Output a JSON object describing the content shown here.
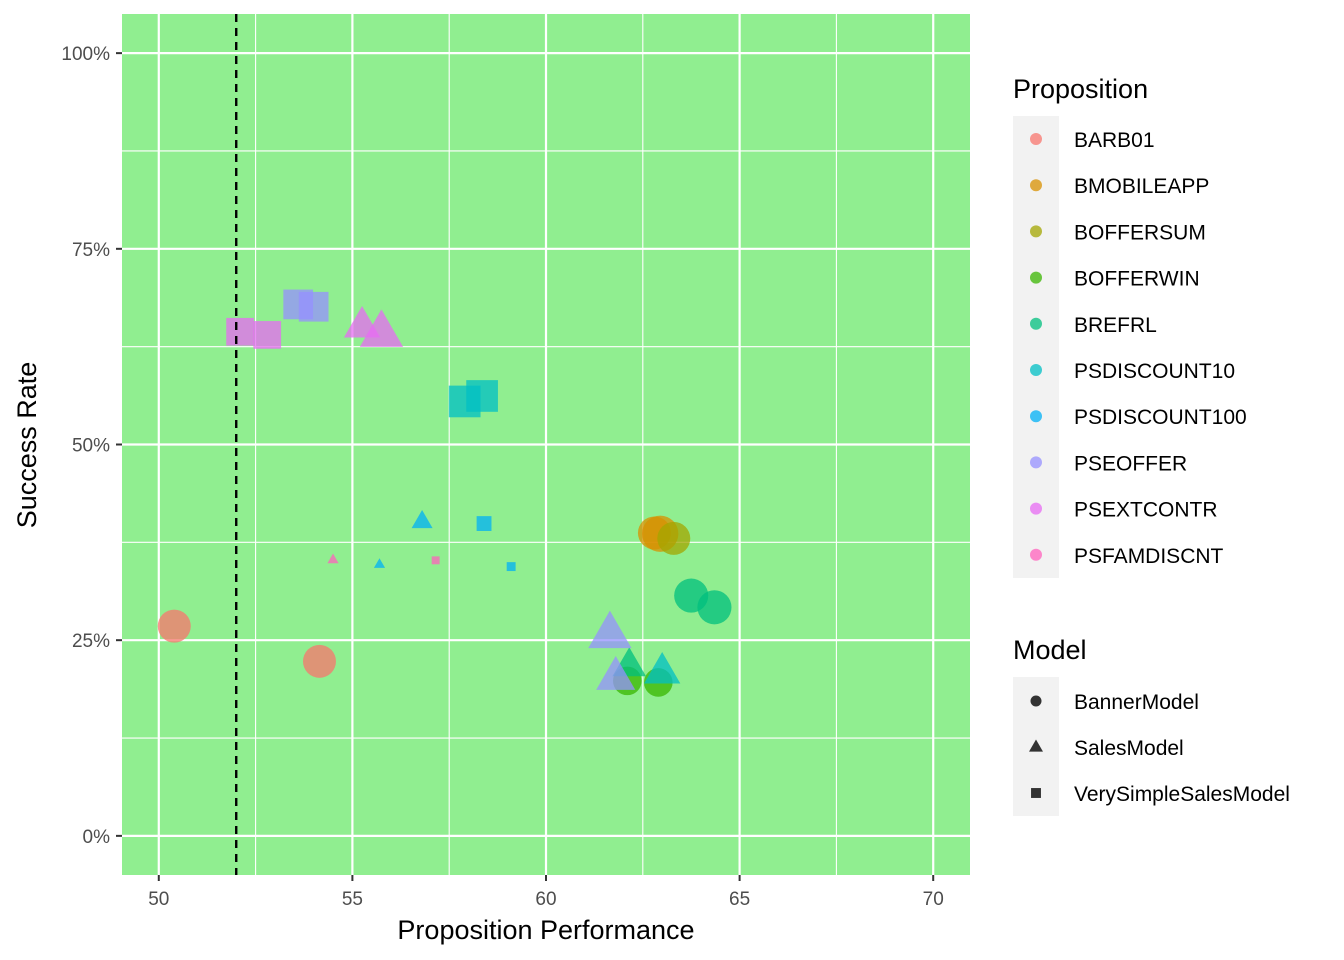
{
  "colors": {
    "panel_background": "#90EE90",
    "grid_major": "#ffffff",
    "legend_key_background": "#f2f2f2",
    "reference_line": "#000000"
  },
  "legend_proposition": {
    "title": "Proposition",
    "items": [
      {
        "label": "BARB01",
        "color": "#F8766D"
      },
      {
        "label": "BMOBILEAPP",
        "color": "#D89000"
      },
      {
        "label": "BOFFERSUM",
        "color": "#A3A500"
      },
      {
        "label": "BOFFERWIN",
        "color": "#39B600"
      },
      {
        "label": "BREFRL",
        "color": "#00BF7D"
      },
      {
        "label": "PSDISCOUNT10",
        "color": "#00BFC4"
      },
      {
        "label": "PSDISCOUNT100",
        "color": "#00B0F6"
      },
      {
        "label": "PSEOFFER",
        "color": "#9590FF"
      },
      {
        "label": "PSEXTCONTR",
        "color": "#E76BF3"
      },
      {
        "label": "PSFAMDISCNT",
        "color": "#FF62BC"
      }
    ]
  },
  "legend_model": {
    "title": "Model",
    "items": [
      {
        "label": "BannerModel",
        "shape": "circle"
      },
      {
        "label": "SalesModel",
        "shape": "triangle"
      },
      {
        "label": "VerySimpleSalesModel",
        "shape": "square"
      }
    ]
  },
  "chart_data": {
    "type": "scatter",
    "title": "",
    "xlabel": "Proposition Performance",
    "ylabel": "Success Rate",
    "xlim": [
      49.05,
      70.95
    ],
    "ylim": [
      -0.05,
      1.05
    ],
    "x_ticks": [
      50,
      55,
      60,
      65,
      70
    ],
    "x_tick_labels": [
      "50",
      "55",
      "60",
      "65",
      "70"
    ],
    "y_ticks": [
      0,
      0.25,
      0.5,
      0.75,
      1.0
    ],
    "y_tick_labels": [
      "0%",
      "25%",
      "50%",
      "75%",
      "100%"
    ],
    "grid": true,
    "legend_position": "right",
    "reference_line": {
      "orientation": "vertical",
      "x": 52,
      "style": "dashed"
    },
    "points": [
      {
        "proposition": "BARB01",
        "model": "BannerModel",
        "x": 50.4,
        "y": 0.268,
        "size": 3
      },
      {
        "proposition": "BARB01",
        "model": "BannerModel",
        "x": 54.15,
        "y": 0.223,
        "size": 3
      },
      {
        "proposition": "BMOBILEAPP",
        "model": "BannerModel",
        "x": 62.8,
        "y": 0.387,
        "size": 3
      },
      {
        "proposition": "BMOBILEAPP",
        "model": "BannerModel",
        "x": 62.95,
        "y": 0.386,
        "size": 3.3
      },
      {
        "proposition": "BOFFERSUM",
        "model": "BannerModel",
        "x": 63.3,
        "y": 0.38,
        "size": 3
      },
      {
        "proposition": "BOFFERWIN",
        "model": "BannerModel",
        "x": 62.1,
        "y": 0.198,
        "size": 2.6
      },
      {
        "proposition": "BOFFERWIN",
        "model": "BannerModel",
        "x": 62.9,
        "y": 0.196,
        "size": 2.6
      },
      {
        "proposition": "BREFRL",
        "model": "BannerModel",
        "x": 63.75,
        "y": 0.307,
        "size": 3.1
      },
      {
        "proposition": "BREFRL",
        "model": "BannerModel",
        "x": 64.35,
        "y": 0.292,
        "size": 3.1
      },
      {
        "proposition": "BREFRL",
        "model": "SalesModel",
        "x": 62.15,
        "y": 0.218,
        "size": 2.4
      },
      {
        "proposition": "PSDISCOUNT10",
        "model": "SalesModel",
        "x": 63.0,
        "y": 0.21,
        "size": 2.6
      },
      {
        "proposition": "PSDISCOUNT10",
        "model": "VerySimpleSalesModel",
        "x": 57.9,
        "y": 0.555,
        "size": 3.2
      },
      {
        "proposition": "PSDISCOUNT10",
        "model": "VerySimpleSalesModel",
        "x": 58.35,
        "y": 0.562,
        "size": 3.2
      },
      {
        "proposition": "PSDISCOUNT100",
        "model": "SalesModel",
        "x": 56.8,
        "y": 0.402,
        "size": 1.5
      },
      {
        "proposition": "PSDISCOUNT100",
        "model": "SalesModel",
        "x": 55.7,
        "y": 0.347,
        "size": 0.8
      },
      {
        "proposition": "PSDISCOUNT100",
        "model": "VerySimpleSalesModel",
        "x": 58.4,
        "y": 0.399,
        "size": 1.5
      },
      {
        "proposition": "PSDISCOUNT100",
        "model": "VerySimpleSalesModel",
        "x": 59.1,
        "y": 0.344,
        "size": 0.9
      },
      {
        "proposition": "PSEOFFER",
        "model": "SalesModel",
        "x": 61.65,
        "y": 0.258,
        "size": 3.1
      },
      {
        "proposition": "PSEOFFER",
        "model": "SalesModel",
        "x": 61.8,
        "y": 0.203,
        "size": 2.8
      },
      {
        "proposition": "PSEOFFER",
        "model": "VerySimpleSalesModel",
        "x": 53.6,
        "y": 0.679,
        "size": 3.0
      },
      {
        "proposition": "PSEOFFER",
        "model": "VerySimpleSalesModel",
        "x": 54.0,
        "y": 0.676,
        "size": 3.0
      },
      {
        "proposition": "PSEXTCONTR",
        "model": "SalesModel",
        "x": 55.25,
        "y": 0.652,
        "size": 2.6
      },
      {
        "proposition": "PSEXTCONTR",
        "model": "SalesModel",
        "x": 55.75,
        "y": 0.643,
        "size": 3.1
      },
      {
        "proposition": "PSEXTCONTR",
        "model": "VerySimpleSalesModel",
        "x": 52.1,
        "y": 0.644,
        "size": 2.8
      },
      {
        "proposition": "PSEXTCONTR",
        "model": "VerySimpleSalesModel",
        "x": 52.8,
        "y": 0.64,
        "size": 2.8
      },
      {
        "proposition": "PSFAMDISCNT",
        "model": "SalesModel",
        "x": 54.5,
        "y": 0.353,
        "size": 0.8
      },
      {
        "proposition": "PSFAMDISCNT",
        "model": "VerySimpleSalesModel",
        "x": 57.15,
        "y": 0.352,
        "size": 0.8
      }
    ]
  }
}
